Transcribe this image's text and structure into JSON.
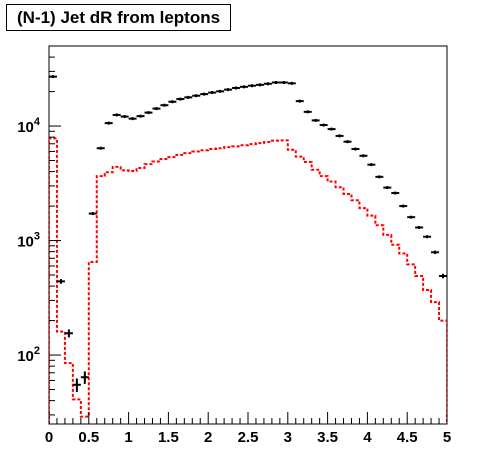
{
  "chart_data": {
    "type": "histogram",
    "title": "(N-1) Jet dR from leptons",
    "xlabel": "",
    "ylabel": "",
    "xlim": [
      0,
      5
    ],
    "ylim": [
      25,
      50000
    ],
    "yscale": "log",
    "grid": false,
    "legend": "none",
    "bin_width": 0.1,
    "x_ticks": [
      "0",
      "0.5",
      "1",
      "1.5",
      "2",
      "2.5",
      "3",
      "3.5",
      "4",
      "4.5",
      "5"
    ],
    "y_ticks": [
      {
        "value": 100,
        "base": "10",
        "exp": "2"
      },
      {
        "value": 1000,
        "base": "10",
        "exp": "3"
      },
      {
        "value": 10000,
        "base": "10",
        "exp": "4"
      }
    ],
    "series": [
      {
        "style": "points",
        "color": "#000000",
        "x": [
          0.05,
          0.15,
          0.25,
          0.35,
          0.45,
          0.55,
          0.65,
          0.75,
          0.85,
          0.95,
          1.05,
          1.15,
          1.25,
          1.35,
          1.45,
          1.55,
          1.65,
          1.75,
          1.85,
          1.95,
          2.05,
          2.15,
          2.25,
          2.35,
          2.45,
          2.55,
          2.65,
          2.75,
          2.85,
          2.95,
          3.05,
          3.15,
          3.25,
          3.35,
          3.45,
          3.55,
          3.65,
          3.75,
          3.85,
          3.95,
          4.05,
          4.15,
          4.25,
          4.35,
          4.45,
          4.55,
          4.65,
          4.75,
          4.85,
          4.95
        ],
        "y": [
          27000,
          440,
          155,
          55,
          64,
          1720,
          6400,
          10600,
          12500,
          12100,
          11600,
          12200,
          13100,
          14200,
          15200,
          16300,
          17200,
          17800,
          18400,
          19000,
          19600,
          20100,
          20800,
          21500,
          22000,
          22500,
          22900,
          23400,
          24000,
          24000,
          23600,
          16500,
          13300,
          11200,
          10200,
          9400,
          8200,
          7300,
          6300,
          5500,
          4600,
          3600,
          2900,
          2600,
          2000,
          1600,
          1300,
          1080,
          790,
          490
        ]
      },
      {
        "style": "step-dashed",
        "color": "#ff0000",
        "x_edges": [
          0,
          0.1,
          0.2,
          0.3,
          0.4,
          0.5,
          0.6,
          0.7,
          0.8,
          0.9,
          1.0,
          1.1,
          1.2,
          1.3,
          1.4,
          1.5,
          1.6,
          1.7,
          1.8,
          1.9,
          2.0,
          2.1,
          2.2,
          2.3,
          2.4,
          2.5,
          2.6,
          2.7,
          2.8,
          2.9,
          3.0,
          3.1,
          3.2,
          3.3,
          3.4,
          3.5,
          3.6,
          3.7,
          3.8,
          3.9,
          4.0,
          4.1,
          4.2,
          4.3,
          4.4,
          4.5,
          4.6,
          4.7,
          4.8,
          4.9,
          5.0
        ],
        "values": [
          7800,
          160,
          85,
          41,
          29,
          650,
          3650,
          3950,
          4400,
          4100,
          4050,
          4300,
          4650,
          4900,
          5150,
          5350,
          5600,
          5800,
          6000,
          6150,
          6300,
          6400,
          6550,
          6650,
          6800,
          6950,
          7100,
          7250,
          7450,
          7500,
          6200,
          5400,
          4850,
          4150,
          3650,
          3280,
          2920,
          2550,
          2250,
          1920,
          1650,
          1360,
          1120,
          920,
          770,
          620,
          490,
          370,
          290,
          200
        ]
      }
    ]
  }
}
